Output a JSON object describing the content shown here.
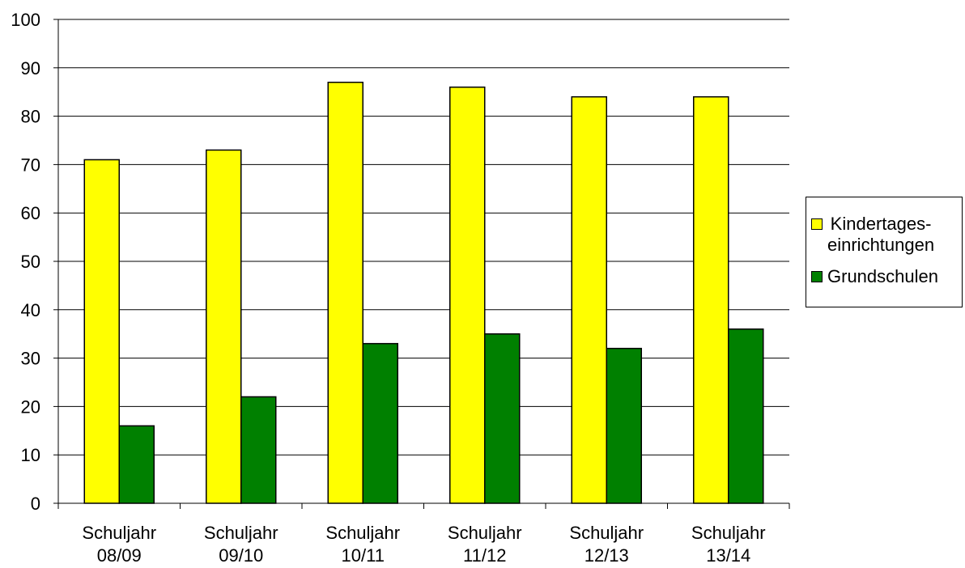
{
  "chart_data": {
    "type": "bar",
    "categories": [
      "Schuljahr\n08/09",
      "Schuljahr\n09/10",
      "Schuljahr\n10/11",
      "Schuljahr\n11/12",
      "Schuljahr\n12/13",
      "Schuljahr\n13/14"
    ],
    "series": [
      {
        "name": "Kindertages-\neinrichtungen",
        "values": [
          71,
          73,
          87,
          86,
          84,
          84
        ],
        "color": "#FFFF00"
      },
      {
        "name": "Grundschulen",
        "values": [
          16,
          22,
          33,
          35,
          32,
          36
        ],
        "color": "#008000"
      }
    ],
    "title": "",
    "xlabel": "",
    "ylabel": "",
    "ylim": [
      0,
      100
    ],
    "yticks": [
      "0",
      "10",
      "20",
      "30",
      "40",
      "50",
      "60",
      "70",
      "80",
      "90",
      "100"
    ],
    "grid": true,
    "legend_position": "right"
  }
}
